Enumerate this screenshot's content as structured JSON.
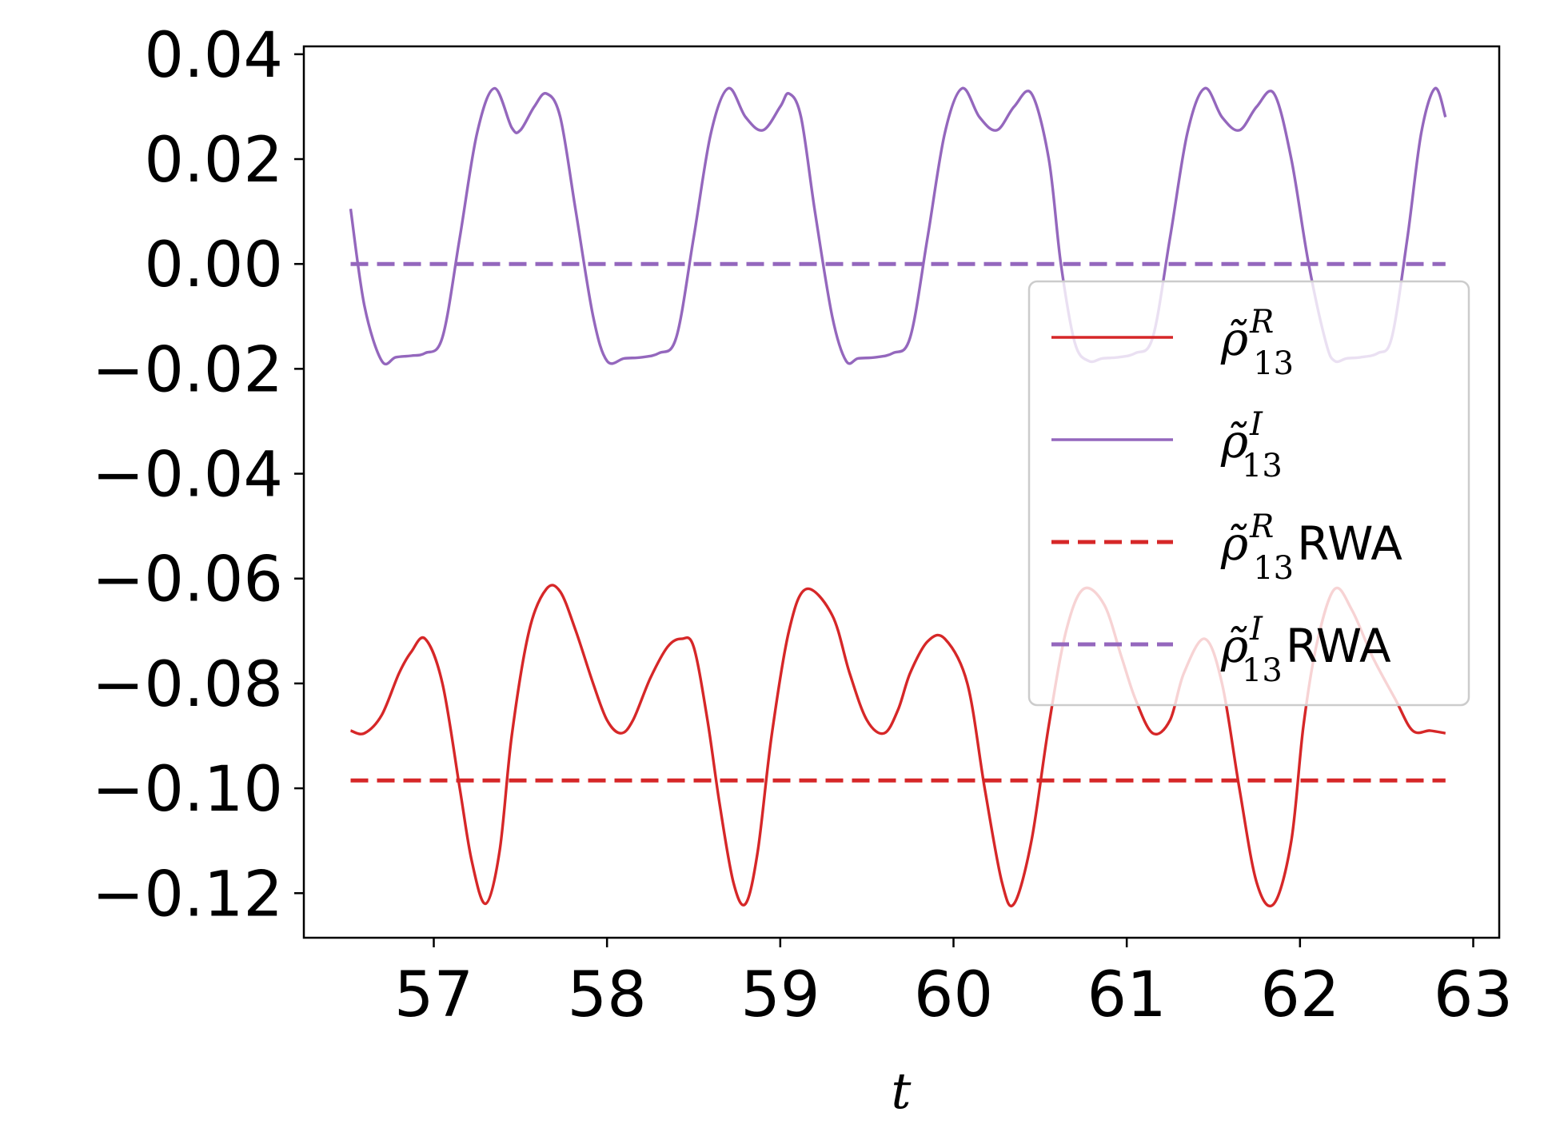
{
  "chart_data": {
    "type": "line",
    "title": "",
    "xlabel": "t",
    "ylabel": "",
    "xlim": [
      56.25,
      63.15
    ],
    "ylim": [
      -0.1285,
      0.0415
    ],
    "x_ticks": [
      57,
      58,
      59,
      60,
      61,
      62,
      63
    ],
    "y_ticks": [
      0.04,
      0.02,
      0.0,
      -0.02,
      -0.04,
      -0.06,
      -0.08,
      -0.1,
      -0.12
    ],
    "x_tick_labels": [
      "57",
      "58",
      "59",
      "60",
      "61",
      "62",
      "63"
    ],
    "y_tick_labels": [
      "0.04",
      "0.02",
      "0.00",
      "−0.02",
      "−0.04",
      "−0.06",
      "−0.08",
      "−0.10",
      "−0.12"
    ],
    "grid": false,
    "legend_position": "center-right",
    "series": [
      {
        "name": "ρ̃ R 13",
        "legend_symbol": "ρ̃",
        "legend_sup": "R",
        "legend_sub": "13",
        "legend_suffix": "",
        "style": "solid",
        "color": "#d62728",
        "x": [
          56.52,
          56.6,
          56.7,
          56.8,
          56.87,
          56.95,
          57.05,
          57.15,
          57.22,
          57.3,
          57.38,
          57.45,
          57.55,
          57.65,
          57.73,
          57.82,
          57.92,
          58.0,
          58.08,
          58.15,
          58.25,
          58.35,
          58.43,
          58.5,
          58.58,
          58.65,
          58.73,
          58.8,
          58.87,
          58.95,
          59.05,
          59.15,
          59.3,
          59.4,
          59.5,
          59.6,
          59.68,
          59.75,
          59.85,
          59.95,
          60.08,
          60.18,
          60.28,
          60.35,
          60.45,
          60.55,
          60.65,
          60.75,
          60.87,
          60.97,
          61.05,
          61.15,
          61.25,
          61.33,
          61.45,
          61.55,
          61.65,
          61.75,
          61.85,
          61.95,
          62.02,
          62.1,
          62.2,
          62.3,
          62.42,
          62.55,
          62.65,
          62.75,
          62.84
        ],
        "y": [
          -0.089,
          -0.0895,
          -0.086,
          -0.078,
          -0.074,
          -0.0715,
          -0.08,
          -0.1,
          -0.114,
          -0.122,
          -0.112,
          -0.09,
          -0.07,
          -0.062,
          -0.0625,
          -0.07,
          -0.08,
          -0.087,
          -0.0895,
          -0.087,
          -0.079,
          -0.073,
          -0.0715,
          -0.073,
          -0.087,
          -0.103,
          -0.118,
          -0.122,
          -0.112,
          -0.09,
          -0.07,
          -0.062,
          -0.067,
          -0.078,
          -0.087,
          -0.0895,
          -0.085,
          -0.078,
          -0.072,
          -0.0715,
          -0.08,
          -0.1,
          -0.118,
          -0.122,
          -0.11,
          -0.088,
          -0.07,
          -0.062,
          -0.065,
          -0.075,
          -0.083,
          -0.0895,
          -0.087,
          -0.078,
          -0.0715,
          -0.08,
          -0.1,
          -0.118,
          -0.122,
          -0.11,
          -0.088,
          -0.072,
          -0.062,
          -0.066,
          -0.075,
          -0.083,
          -0.089,
          -0.089,
          -0.0895
        ]
      },
      {
        "name": "ρ̃ I 13",
        "legend_symbol": "ρ̃",
        "legend_sup": "I",
        "legend_sub": "13",
        "legend_suffix": "",
        "style": "solid",
        "color": "#9467bd",
        "x": [
          56.52,
          56.6,
          56.7,
          56.78,
          56.87,
          56.95,
          57.05,
          57.15,
          57.25,
          57.35,
          57.45,
          57.5,
          57.58,
          57.65,
          57.73,
          57.82,
          57.92,
          58.0,
          58.1,
          58.2,
          58.3,
          58.4,
          58.5,
          58.6,
          58.7,
          58.8,
          58.9,
          59.0,
          59.05,
          59.12,
          59.2,
          59.3,
          59.38,
          59.45,
          59.55,
          59.65,
          59.75,
          59.85,
          59.95,
          60.05,
          60.15,
          60.25,
          60.35,
          60.45,
          60.55,
          60.62,
          60.7,
          60.78,
          60.86,
          60.95,
          61.05,
          61.15,
          61.25,
          61.35,
          61.45,
          61.55,
          61.65,
          61.75,
          61.85,
          61.95,
          62.05,
          62.15,
          62.2,
          62.27,
          62.35,
          62.45,
          62.53,
          62.62,
          62.7,
          62.78,
          62.84
        ],
        "y": [
          0.0105,
          -0.008,
          -0.0185,
          -0.0178,
          -0.0175,
          -0.017,
          -0.014,
          0.005,
          0.025,
          0.0335,
          0.026,
          0.0255,
          0.03,
          0.0325,
          0.028,
          0.01,
          -0.01,
          -0.0185,
          -0.018,
          -0.0178,
          -0.017,
          -0.014,
          0.005,
          0.025,
          0.0335,
          0.028,
          0.0255,
          0.03,
          0.0325,
          0.028,
          0.01,
          -0.01,
          -0.0185,
          -0.018,
          -0.0178,
          -0.017,
          -0.014,
          0.005,
          0.025,
          0.0335,
          0.028,
          0.0255,
          0.03,
          0.0325,
          0.02,
          0.0,
          -0.015,
          -0.0185,
          -0.018,
          -0.0178,
          -0.017,
          -0.014,
          0.005,
          0.025,
          0.0335,
          0.028,
          0.0255,
          0.03,
          0.0325,
          0.02,
          0.0,
          -0.015,
          -0.0185,
          -0.018,
          -0.0178,
          -0.017,
          -0.014,
          0.005,
          0.025,
          0.0335,
          0.028
        ],
        "y_note_series_end": 0.0105
      },
      {
        "name": "ρ̃ R 13 RWA",
        "legend_symbol": "ρ̃",
        "legend_sup": "R",
        "legend_sub": "13",
        "legend_suffix": "RWA",
        "style": "dashed",
        "color": "#d62728",
        "x": [
          56.52,
          62.84
        ],
        "y": [
          -0.0985,
          -0.0985
        ]
      },
      {
        "name": "ρ̃ I 13 RWA",
        "legend_symbol": "ρ̃",
        "legend_sup": "I",
        "legend_sub": "13",
        "legend_suffix": "RWA",
        "style": "dashed",
        "color": "#9467bd",
        "x": [
          56.52,
          62.84
        ],
        "y": [
          0.0,
          0.0
        ]
      }
    ]
  }
}
